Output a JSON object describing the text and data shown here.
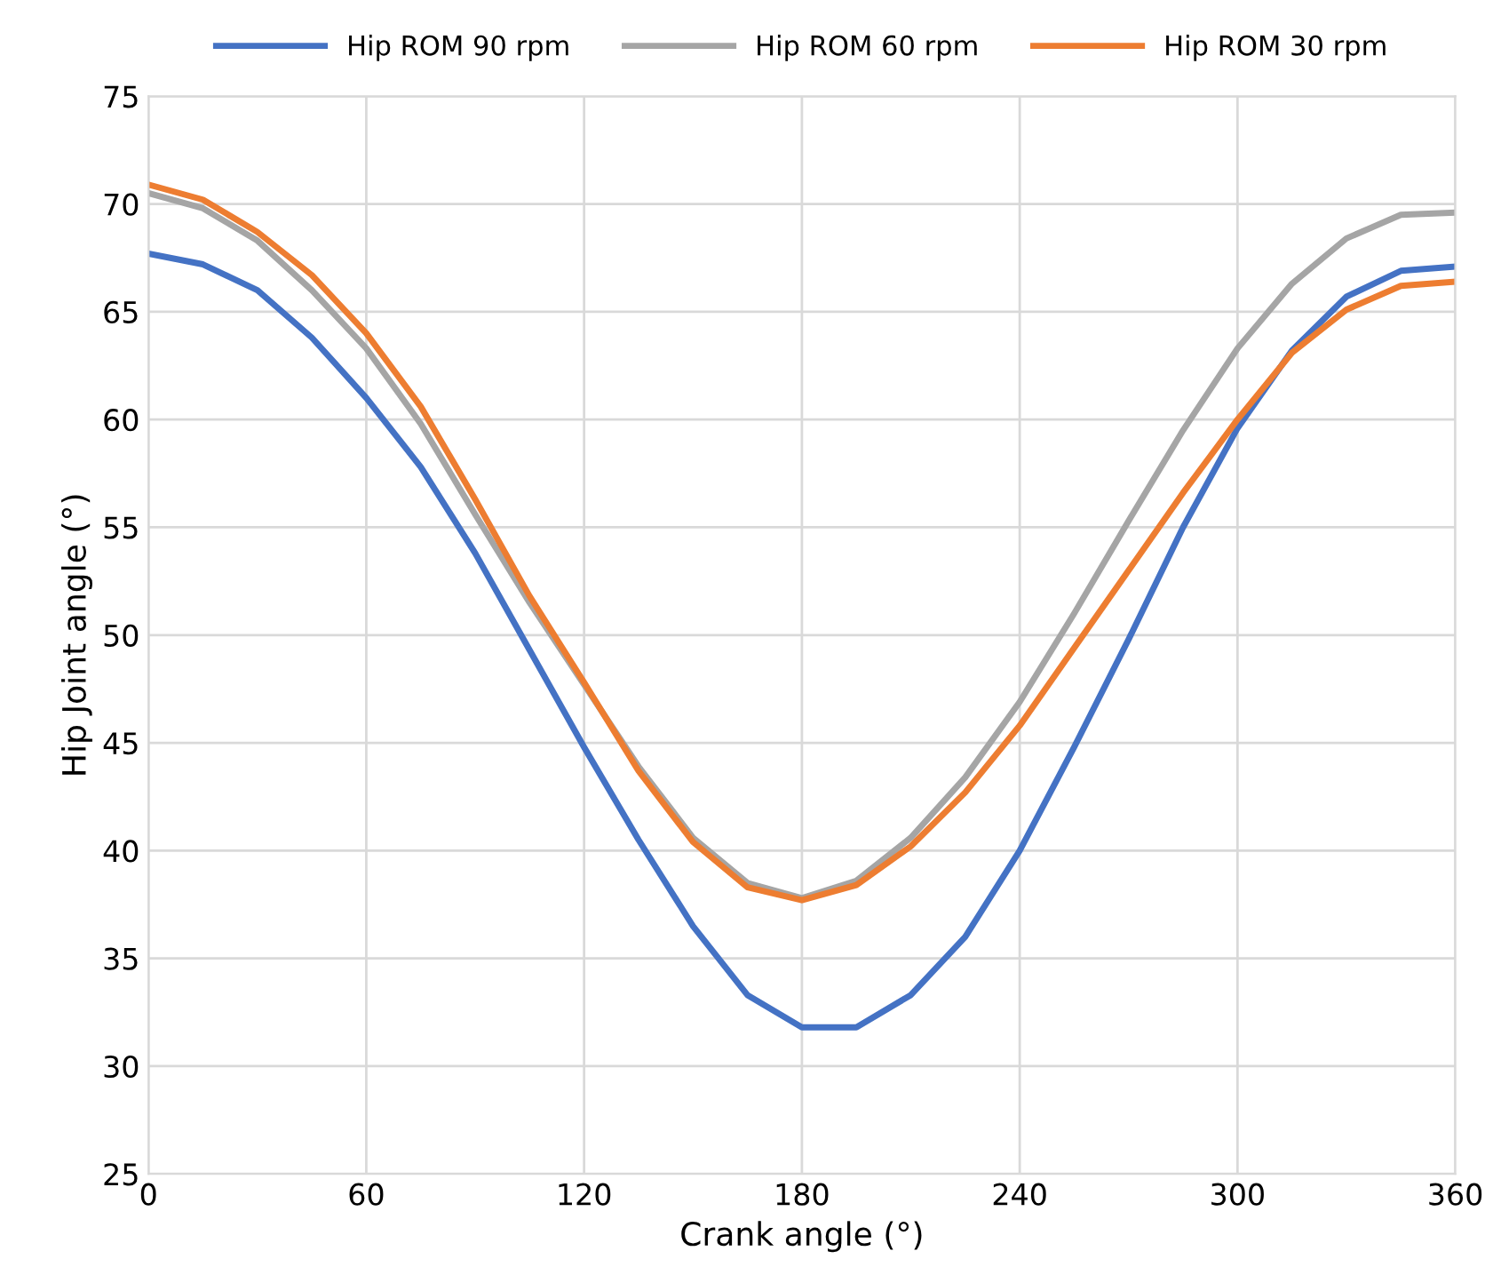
{
  "chart_data": {
    "type": "line",
    "xlabel": "Crank angle (°)",
    "ylabel": "Hip Joint angle (°)",
    "x": [
      0,
      15,
      30,
      45,
      60,
      75,
      90,
      105,
      120,
      135,
      150,
      165,
      180,
      195,
      210,
      225,
      240,
      255,
      270,
      285,
      300,
      315,
      330,
      345,
      360
    ],
    "series": [
      {
        "name": "Hip ROM 90 rpm",
        "color": "#4472c4",
        "values": [
          67.7,
          67.2,
          66.0,
          63.8,
          61.0,
          57.8,
          53.8,
          49.3,
          44.8,
          40.5,
          36.5,
          33.3,
          31.8,
          31.8,
          33.3,
          36.0,
          40.0,
          44.8,
          49.8,
          55.0,
          59.6,
          63.2,
          65.7,
          66.9,
          67.1
        ]
      },
      {
        "name": "Hip ROM 60 rpm",
        "color": "#a5a5a5",
        "values": [
          70.5,
          69.8,
          68.3,
          66.0,
          63.3,
          59.8,
          55.6,
          51.5,
          47.7,
          43.9,
          40.6,
          38.5,
          37.8,
          38.6,
          40.6,
          43.4,
          46.9,
          51.0,
          55.3,
          59.5,
          63.3,
          66.3,
          68.4,
          69.5,
          69.6
        ]
      },
      {
        "name": "Hip ROM 30 rpm",
        "color": "#ed7d31",
        "values": [
          70.9,
          70.2,
          68.7,
          66.7,
          64.0,
          60.6,
          56.3,
          51.8,
          47.8,
          43.7,
          40.4,
          38.3,
          37.7,
          38.4,
          40.2,
          42.7,
          45.8,
          49.4,
          53.0,
          56.6,
          60.0,
          63.1,
          65.1,
          66.2,
          66.4
        ]
      }
    ],
    "xlim": [
      0,
      360
    ],
    "xticks": [
      0,
      60,
      120,
      180,
      240,
      300,
      360
    ],
    "ylim": [
      25,
      75
    ],
    "yticks": [
      25,
      30,
      35,
      40,
      45,
      50,
      55,
      60,
      65,
      70,
      75
    ],
    "grid": true,
    "legend": "top",
    "marker": "none",
    "line_style": "solid"
  }
}
